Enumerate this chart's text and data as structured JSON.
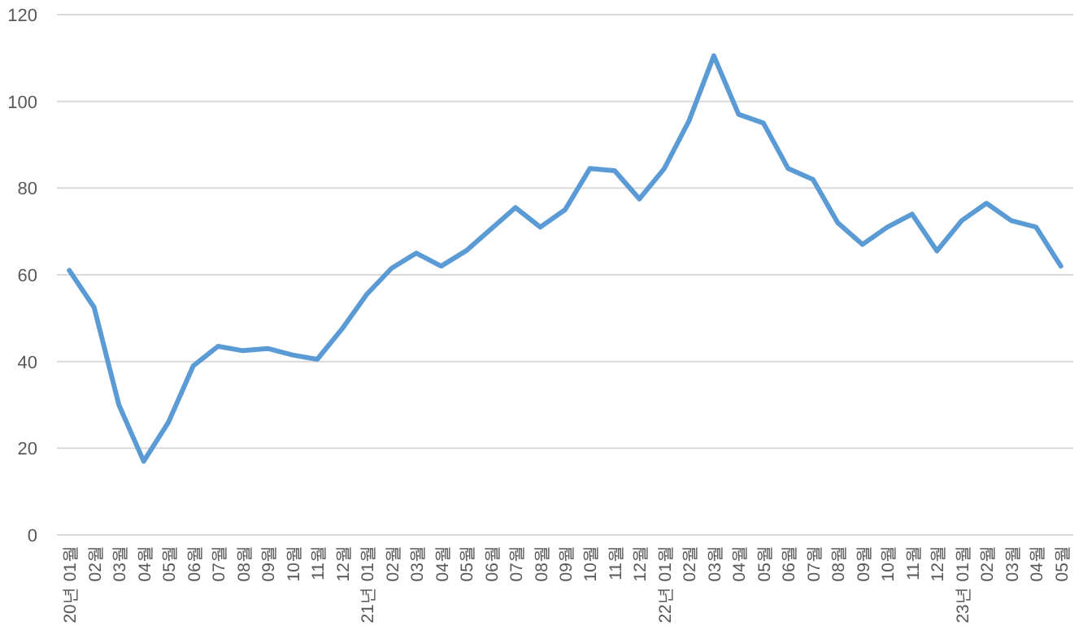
{
  "chart_data": {
    "type": "line",
    "categories": [
      "20년 01월",
      "02월",
      "03월",
      "04월",
      "05월",
      "06월",
      "07월",
      "08월",
      "09월",
      "10월",
      "11월",
      "12월",
      "21년 01월",
      "02월",
      "03월",
      "04월",
      "05월",
      "06월",
      "07월",
      "08월",
      "09월",
      "10월",
      "11월",
      "12월",
      "22년 01월",
      "02월",
      "03월",
      "04월",
      "05월",
      "06월",
      "07월",
      "08월",
      "09월",
      "10월",
      "11월",
      "12월",
      "23년 01월",
      "02월",
      "03월",
      "04월",
      "05월"
    ],
    "series": [
      {
        "color": "#5b9bd5",
        "values": [
          61,
          52.5,
          30,
          17,
          26,
          39,
          43.5,
          42.5,
          43,
          41.5,
          40.5,
          47.5,
          55.5,
          61.5,
          65,
          62,
          65.5,
          70.5,
          75.5,
          71,
          75,
          84.5,
          84,
          77.5,
          84.5,
          95.5,
          110.5,
          97,
          95,
          84.5,
          82,
          72,
          67,
          71,
          74,
          65.5,
          72.5,
          76.5,
          72.5,
          71,
          62
        ]
      }
    ],
    "ylim": [
      0,
      120
    ],
    "yticks": [
      0,
      20,
      40,
      60,
      80,
      100,
      120
    ],
    "grid": "y",
    "marker": "none",
    "line_style": "solid"
  }
}
